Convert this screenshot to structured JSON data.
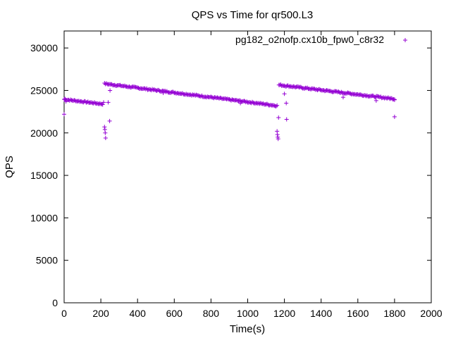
{
  "chart_data": {
    "type": "scatter",
    "title": "QPS vs Time for qr500.L3",
    "xlabel": "Time(s)",
    "ylabel": "QPS",
    "xlim": [
      0,
      2000
    ],
    "ylim": [
      0,
      32000
    ],
    "xticks": [
      0,
      200,
      400,
      600,
      800,
      1000,
      1200,
      1400,
      1600,
      1800,
      2000
    ],
    "yticks": [
      0,
      5000,
      10000,
      15000,
      20000,
      25000,
      30000
    ],
    "grid": false,
    "legend_position": "top-right",
    "series": [
      {
        "name": "pg182_o2nofp.cx10b_fpw0_c8r32",
        "color": "#9400d3",
        "marker": "plus",
        "segments": [
          {
            "x_start": 0,
            "x_end": 210,
            "y_start": 23950,
            "y_end": 23400,
            "step": 5
          },
          {
            "x_start": 220,
            "x_end": 1160,
            "y_start": 25800,
            "y_end": 23200,
            "step": 5
          },
          {
            "x_start": 1170,
            "x_end": 1800,
            "y_start": 25650,
            "y_end": 24000,
            "step": 5
          }
        ],
        "extra_points": [
          [
            0,
            22200
          ],
          [
            5,
            24000
          ],
          [
            10,
            23700
          ],
          [
            215,
            23600
          ],
          [
            220,
            20700
          ],
          [
            222,
            20400
          ],
          [
            224,
            20000
          ],
          [
            226,
            19400
          ],
          [
            240,
            23600
          ],
          [
            248,
            21400
          ],
          [
            250,
            25000
          ],
          [
            540,
            24700
          ],
          [
            960,
            23500
          ],
          [
            1160,
            20200
          ],
          [
            1162,
            19800
          ],
          [
            1164,
            19500
          ],
          [
            1166,
            19300
          ],
          [
            1168,
            21800
          ],
          [
            1200,
            24600
          ],
          [
            1210,
            23500
          ],
          [
            1212,
            21600
          ],
          [
            1520,
            24200
          ],
          [
            1700,
            23800
          ],
          [
            1800,
            21900
          ],
          [
            1800,
            23900
          ]
        ]
      }
    ]
  }
}
